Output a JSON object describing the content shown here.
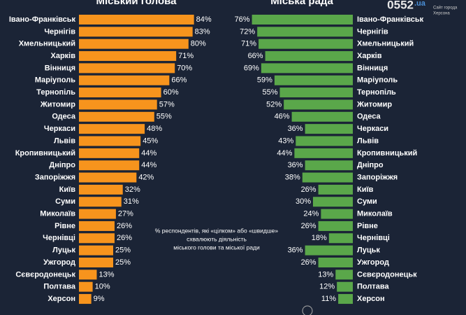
{
  "chart_data": [
    {
      "type": "bar",
      "orientation": "horizontal",
      "title": "Міський голова",
      "color": "#f7941d",
      "categories": [
        "Івано-Франківськ",
        "Чернігів",
        "Хмельницький",
        "Харків",
        "Вінниця",
        "Маріуполь",
        "Тернопіль",
        "Житомир",
        "Одеса",
        "Черкаси",
        "Львів",
        "Кропивницький",
        "Дніпро",
        "Запоріжжя",
        "Київ",
        "Суми",
        "Миколаїв",
        "Рівне",
        "Чернівці",
        "Луцьк",
        "Ужгород",
        "Сєвєродонецьк",
        "Полтава",
        "Херсон"
      ],
      "values": [
        84,
        83,
        80,
        71,
        70,
        66,
        60,
        57,
        55,
        48,
        45,
        44,
        44,
        42,
        32,
        31,
        27,
        26,
        26,
        25,
        25,
        13,
        10,
        9
      ],
      "value_labels": [
        "84%",
        "83%",
        "80%",
        "71%",
        "70%",
        "66%",
        "60%",
        "57%",
        "55%",
        "48%",
        "45%",
        "44%",
        "44%",
        "42%",
        "32%",
        "31%",
        "27%",
        "26%",
        "26%",
        "25%",
        "25%",
        "13%",
        "10%",
        "9%"
      ]
    },
    {
      "type": "bar",
      "orientation": "horizontal",
      "title": "Міська рада",
      "color": "#5aa74a",
      "categories": [
        "Івано-Франківськ",
        "Чернігів",
        "Хмельницький",
        "Харків",
        "Вінниця",
        "Маріуполь",
        "Тернопіль",
        "Житомир",
        "Одеса",
        "Черкаси",
        "Львів",
        "Кропивницький",
        "Дніпро",
        "Запоріжжя",
        "Київ",
        "Суми",
        "Миколаїв",
        "Рівне",
        "Чернівці",
        "Луцьк",
        "Ужгород",
        "Сєвєродонецьк",
        "Полтава",
        "Херсон"
      ],
      "values": [
        76,
        72,
        71,
        66,
        69,
        59,
        55,
        52,
        46,
        36,
        43,
        44,
        36,
        38,
        26,
        30,
        24,
        26,
        18,
        36,
        26,
        13,
        12,
        11
      ],
      "value_labels": [
        "76%",
        "72%",
        "71%",
        "66%",
        "69%",
        "59%",
        "55%",
        "52%",
        "46%",
        "36%",
        "43%",
        "44%",
        "36%",
        "38%",
        "26%",
        "30%",
        "24%",
        "26%",
        "18%",
        "36%",
        "26%",
        "13%",
        "12%",
        "11%"
      ]
    }
  ],
  "note": [
    "% респондентів, які «цілком» або «швидше»",
    "схвалюють діяльність",
    "міського голови та міської ради"
  ],
  "logo": {
    "text": "0552",
    "suffix": ".ua",
    "tagline": [
      "Сайт города",
      "Херсона"
    ]
  }
}
